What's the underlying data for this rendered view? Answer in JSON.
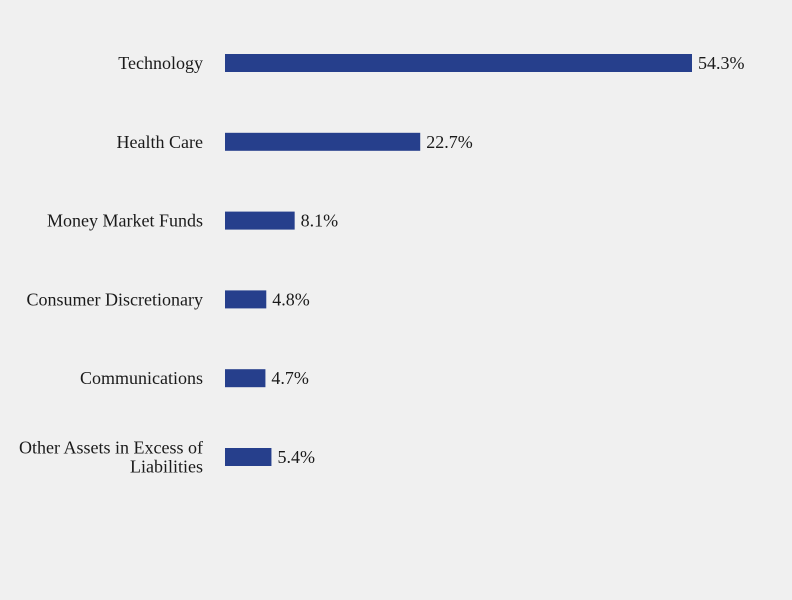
{
  "chart_data": {
    "type": "bar",
    "orientation": "horizontal",
    "title": "",
    "xlabel": "",
    "ylabel": "",
    "categories": [
      "Technology",
      "Health Care",
      "Money Market Funds",
      "Consumer Discretionary",
      "Communications",
      "Other Assets in Excess of Liabilities"
    ],
    "category_lines": [
      [
        "Technology"
      ],
      [
        "Health Care"
      ],
      [
        "Money Market Funds"
      ],
      [
        "Consumer Discretionary"
      ],
      [
        "Communications"
      ],
      [
        "Other Assets in Excess of",
        "Liabilities"
      ]
    ],
    "values": [
      54.3,
      22.7,
      8.1,
      4.8,
      4.7,
      5.4
    ],
    "value_labels": [
      "54.3%",
      "22.7%",
      "8.1%",
      "4.8%",
      "4.7%",
      "5.4%"
    ],
    "xlim": [
      0,
      54.3
    ],
    "grid": false,
    "legend": "none",
    "bar_color": "#263f8c",
    "background_color": "#f0f0f0",
    "text_color": "#1a1a1a"
  }
}
